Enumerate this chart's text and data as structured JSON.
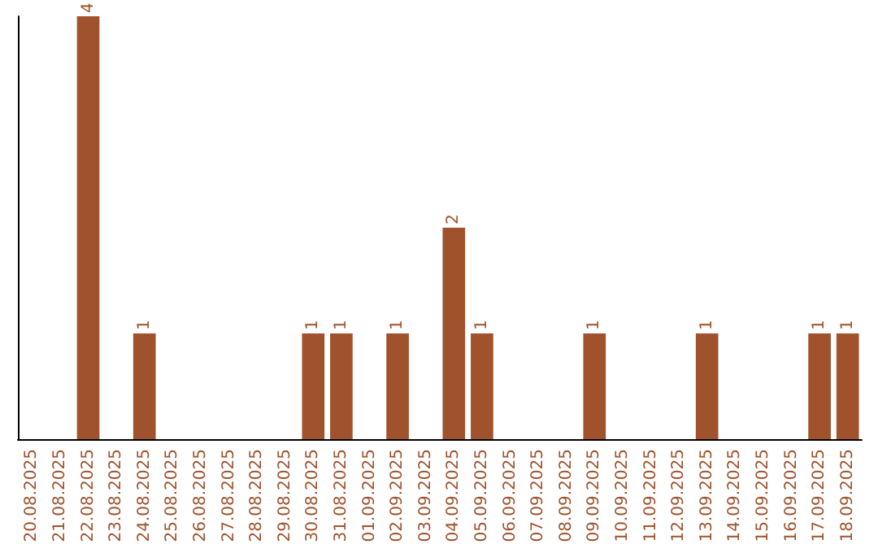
{
  "chart_data": {
    "type": "bar",
    "categories": [
      "20.08.2025",
      "21.08.2025",
      "22.08.2025",
      "23.08.2025",
      "24.08.2025",
      "25.08.2025",
      "26.08.2025",
      "27.08.2025",
      "28.08.2025",
      "29.08.2025",
      "30.08.2025",
      "31.08.2025",
      "01.09.2025",
      "02.09.2025",
      "03.09.2025",
      "04.09.2025",
      "05.09.2025",
      "06.09.2025",
      "07.09.2025",
      "08.09.2025",
      "09.09.2025",
      "10.09.2025",
      "11.09.2025",
      "12.09.2025",
      "13.09.2025",
      "14.09.2025",
      "15.09.2025",
      "16.09.2025",
      "17.09.2025",
      "18.09.2025"
    ],
    "values": [
      0,
      0,
      4,
      0,
      1,
      0,
      0,
      0,
      0,
      0,
      1,
      1,
      0,
      1,
      0,
      2,
      1,
      0,
      0,
      0,
      1,
      0,
      0,
      0,
      1,
      0,
      0,
      0,
      1,
      1
    ],
    "value_labels": [
      null,
      null,
      "4",
      null,
      "1",
      null,
      null,
      null,
      null,
      null,
      "1",
      "1",
      null,
      "1",
      null,
      "2",
      "1",
      null,
      null,
      null,
      "1",
      null,
      null,
      null,
      "1",
      null,
      null,
      null,
      "1",
      "1"
    ],
    "color": "#a0522d",
    "grid": false,
    "tick_labels": "x"
  }
}
